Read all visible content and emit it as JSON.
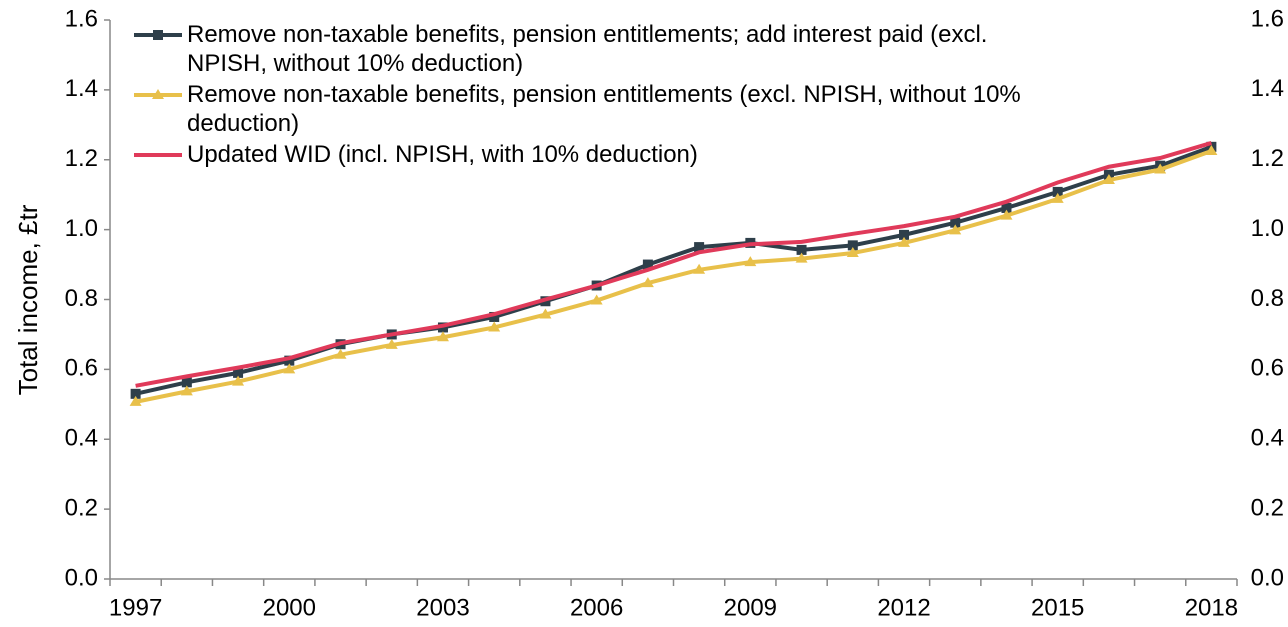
{
  "chart_data": {
    "type": "line",
    "y_label": "Total income, £tr",
    "categories": [
      "1997",
      null,
      null,
      "2000",
      null,
      null,
      "2003",
      null,
      null,
      "2006",
      null,
      null,
      "2009",
      null,
      null,
      "2012",
      null,
      null,
      "2015",
      null,
      null,
      "2018"
    ],
    "series": [
      {
        "name": "Remove non-taxable benefits, pension entitlements; add interest paid (excl. NPISH, without 10% deduction)",
        "color": "#2e3f4a",
        "marker": "square",
        "values": [
          0.53,
          0.563,
          0.59,
          0.625,
          0.672,
          0.7,
          0.72,
          0.75,
          0.795,
          0.84,
          0.9,
          0.95,
          0.962,
          0.942,
          0.955,
          0.985,
          1.02,
          1.062,
          1.108,
          1.157,
          1.183,
          1.237
        ]
      },
      {
        "name": "Remove non-taxable benefits, pension entitlements (excl. NPISH, without 10% deduction)",
        "color": "#e8c04a",
        "marker": "triangle",
        "values": [
          0.507,
          0.537,
          0.565,
          0.6,
          0.642,
          0.67,
          0.692,
          0.72,
          0.757,
          0.797,
          0.847,
          0.885,
          0.907,
          0.917,
          0.933,
          0.962,
          0.998,
          1.04,
          1.088,
          1.142,
          1.172,
          1.225
        ]
      },
      {
        "name": "Updated WID (incl. NPISH, with 10% deduction)",
        "color": "#e03a5a",
        "marker": "none",
        "values": [
          0.553,
          0.58,
          0.605,
          0.632,
          0.675,
          0.7,
          0.725,
          0.758,
          0.8,
          0.84,
          0.885,
          0.935,
          0.958,
          0.965,
          0.988,
          1.01,
          1.037,
          1.08,
          1.135,
          1.18,
          1.205,
          1.248
        ]
      }
    ],
    "ylim": [
      0,
      1.6
    ],
    "yticks": [
      {
        "value": 0,
        "label": "0.0"
      },
      0.2,
      0.4,
      0.6,
      0.8,
      {
        "value": 1,
        "label": "1.0"
      },
      1.2,
      1.4,
      1.6
    ],
    "y2lim": [
      0,
      1.6
    ],
    "y2ticks": [
      {
        "value": 0,
        "label": "0.0"
      },
      0.2,
      0.4,
      0.6,
      0.8,
      {
        "value": 1,
        "label": "1.0"
      },
      1.2,
      1.4,
      1.6
    ],
    "legend": "top-left",
    "grid": false
  }
}
